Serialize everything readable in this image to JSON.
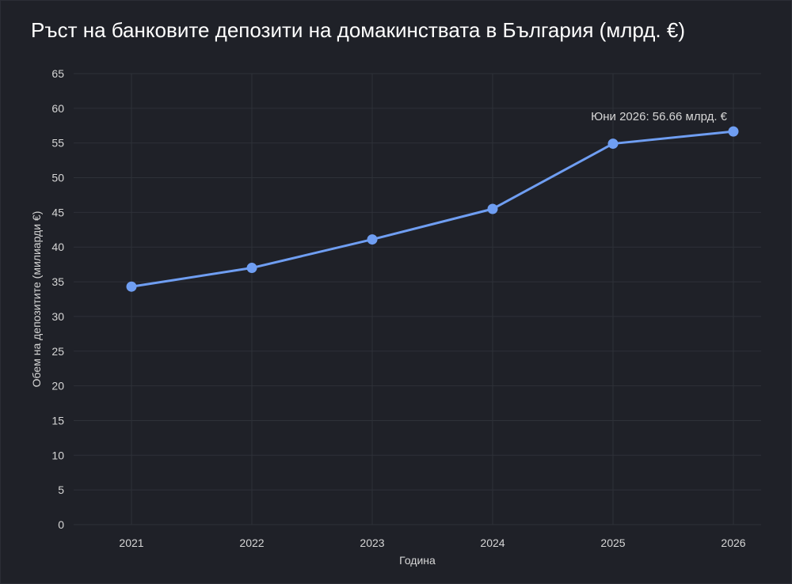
{
  "title": "Ръст на банковите депозити на домакинствата в България (млрд. €)",
  "colors": {
    "background": "#1f2128",
    "grid": "#2e3138",
    "line": "#6f9ef2",
    "marker": "#6f9ef2",
    "text": "#d6d6d6",
    "title": "#ffffff"
  },
  "chart_data": {
    "type": "line",
    "title": "Ръст на банковите депозити на домакинствата в България (млрд. €)",
    "xlabel": "Година",
    "ylabel": "Обем на депозитите (милиарди €)",
    "categories": [
      "2021",
      "2022",
      "2023",
      "2024",
      "2025",
      "2026"
    ],
    "series": [
      {
        "values": [
          34.3,
          37.0,
          41.1,
          45.5,
          54.9,
          56.66
        ]
      }
    ],
    "ylim": [
      0,
      65
    ],
    "yticks": [
      0,
      5,
      10,
      15,
      20,
      25,
      30,
      35,
      40,
      45,
      50,
      55,
      60,
      65
    ],
    "grid": true,
    "legend": "none",
    "annotations": [
      {
        "category": "2026",
        "text": "Юни 2026: 56.66 млрд. €"
      }
    ]
  }
}
